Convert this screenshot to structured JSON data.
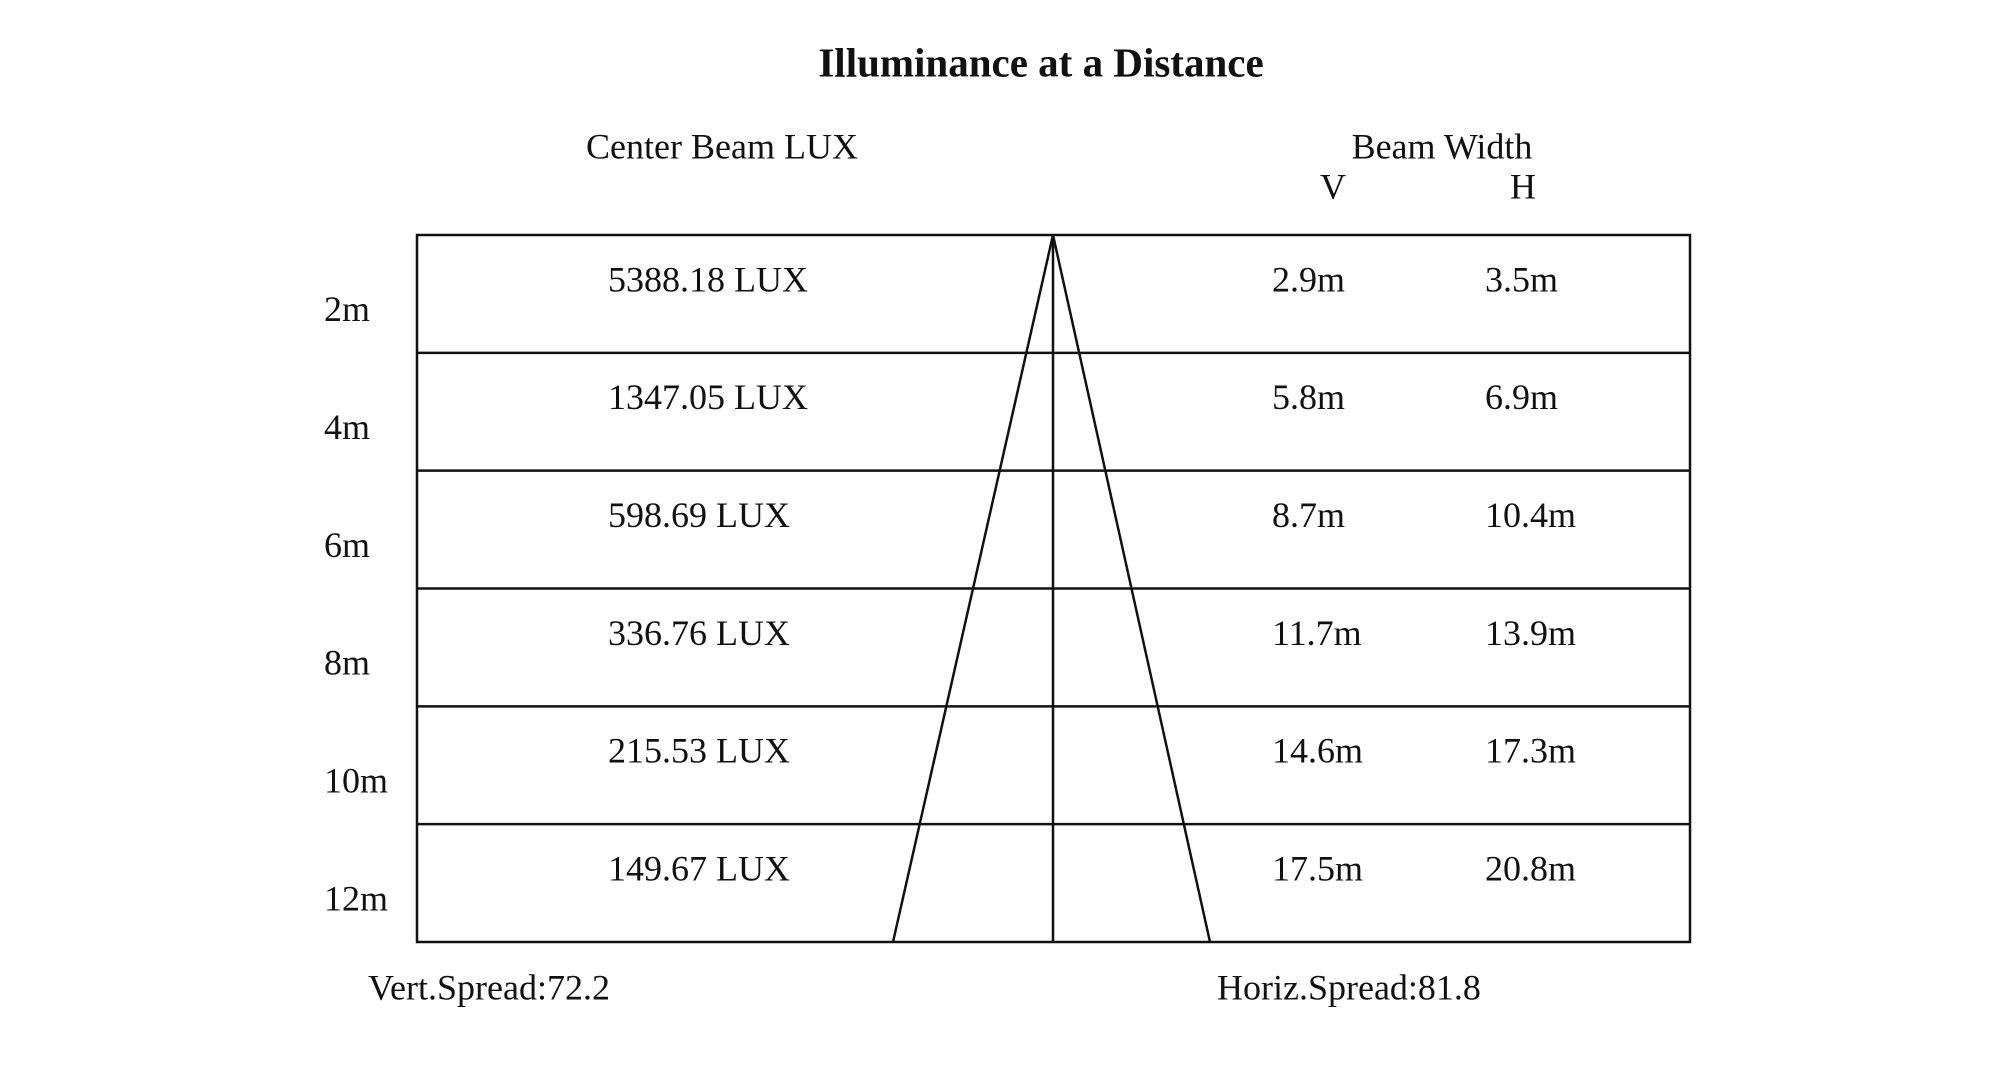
{
  "title": "Illuminance at a Distance",
  "headers": {
    "lux": "Center Beam LUX",
    "beam_width": "Beam Width",
    "v": "V",
    "h": "H"
  },
  "rows": [
    {
      "distance": "2m",
      "lux": "5388.18 LUX",
      "v": "2.9m",
      "h": "3.5m"
    },
    {
      "distance": "4m",
      "lux": "1347.05 LUX",
      "v": "5.8m",
      "h": "6.9m"
    },
    {
      "distance": "6m",
      "lux": "598.69 LUX",
      "v": "8.7m",
      "h": "10.4m"
    },
    {
      "distance": "8m",
      "lux": "336.76 LUX",
      "v": "11.7m",
      "h": "13.9m"
    },
    {
      "distance": "10m",
      "lux": "215.53 LUX",
      "v": "14.6m",
      "h": "17.3m"
    },
    {
      "distance": "12m",
      "lux": "149.67 LUX",
      "v": "17.5m",
      "h": "20.8m"
    }
  ],
  "footer": {
    "vert": "Vert.Spread:72.2",
    "horiz": "Horiz.Spread:81.8"
  }
}
